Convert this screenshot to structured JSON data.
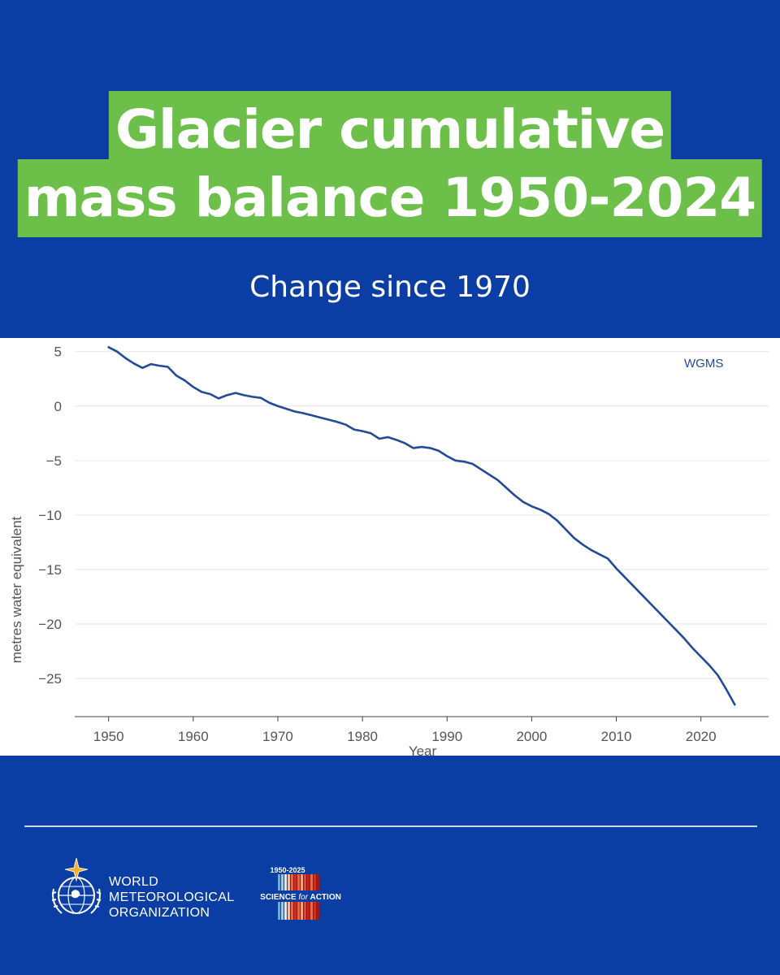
{
  "header": {
    "title_line1": "Glacier cumulative",
    "title_line2": "mass balance 1950-2024",
    "subtitle": "Change since 1970"
  },
  "colors": {
    "background": "#0a3ea4",
    "title_highlight": "#6cc04a",
    "series_line": "#234a97"
  },
  "chart_data": {
    "type": "line",
    "title": "",
    "xlabel": "Year",
    "ylabel": "metres water equivalent",
    "xlim": [
      1946,
      2028
    ],
    "ylim": [
      -28.5,
      5.5
    ],
    "x_ticks": [
      1950,
      1960,
      1970,
      1980,
      1990,
      2000,
      2010,
      2020
    ],
    "y_ticks": [
      5,
      0,
      -5,
      -10,
      -15,
      -20,
      -25
    ],
    "y_tick_labels": [
      "5",
      "0",
      "−5",
      "−10",
      "−15",
      "−20",
      "−25"
    ],
    "grid": "horizontal",
    "series": [
      {
        "name": "WGMS",
        "x": [
          1950,
          1951,
          1952,
          1953,
          1954,
          1955,
          1956,
          1957,
          1958,
          1959,
          1960,
          1961,
          1962,
          1963,
          1964,
          1965,
          1966,
          1967,
          1968,
          1969,
          1970,
          1971,
          1972,
          1973,
          1974,
          1975,
          1976,
          1977,
          1978,
          1979,
          1980,
          1981,
          1982,
          1983,
          1984,
          1985,
          1986,
          1987,
          1988,
          1989,
          1990,
          1991,
          1992,
          1993,
          1994,
          1995,
          1996,
          1997,
          1998,
          1999,
          2000,
          2001,
          2002,
          2003,
          2004,
          2005,
          2006,
          2007,
          2008,
          2009,
          2010,
          2011,
          2012,
          2013,
          2014,
          2015,
          2016,
          2017,
          2018,
          2019,
          2020,
          2021,
          2022,
          2023,
          2024
        ],
        "values": [
          5.4,
          5.0,
          4.4,
          3.9,
          3.5,
          3.85,
          3.7,
          3.6,
          2.8,
          2.35,
          1.75,
          1.3,
          1.1,
          0.7,
          1.0,
          1.2,
          1.0,
          0.85,
          0.75,
          0.3,
          0.0,
          -0.25,
          -0.5,
          -0.65,
          -0.85,
          -1.05,
          -1.25,
          -1.45,
          -1.7,
          -2.15,
          -2.3,
          -2.5,
          -3.0,
          -2.85,
          -3.1,
          -3.4,
          -3.85,
          -3.75,
          -3.85,
          -4.1,
          -4.6,
          -5.0,
          -5.1,
          -5.3,
          -5.8,
          -6.3,
          -6.8,
          -7.5,
          -8.2,
          -8.8,
          -9.2,
          -9.5,
          -9.9,
          -10.5,
          -11.3,
          -12.1,
          -12.7,
          -13.2,
          -13.6,
          -14.0,
          -14.9,
          -15.7,
          -16.5,
          -17.3,
          -18.1,
          -18.9,
          -19.7,
          -20.5,
          -21.3,
          -22.2,
          -23.0,
          -23.8,
          -24.7,
          -26.0,
          -27.4
        ]
      }
    ]
  },
  "footer": {
    "org_line1": "WORLD",
    "org_line2": "METEOROLOGICAL",
    "org_line3": "ORGANIZATION",
    "anniversary_years": "1950-2025",
    "anniversary_tagline_a": "SCIENCE",
    "anniversary_tagline_b": "for",
    "anniversary_tagline_c": "ACTION"
  }
}
